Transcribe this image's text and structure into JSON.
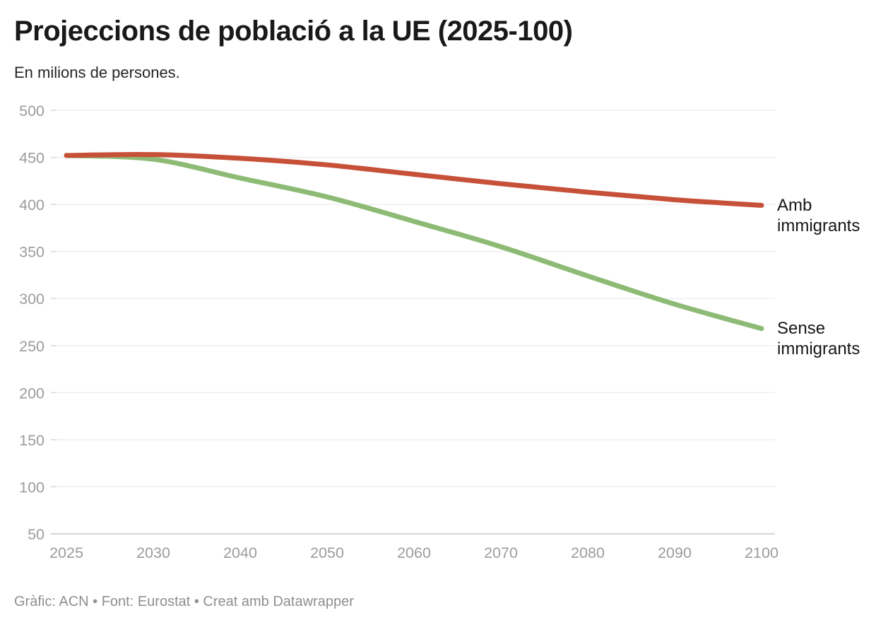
{
  "chart_data": {
    "type": "line",
    "title": "Projeccions de població a la UE (2025-100)",
    "subtitle": "En milions de persones.",
    "categories": [
      "2025",
      "2030",
      "2040",
      "2050",
      "2060",
      "2070",
      "2080",
      "2090",
      "2100"
    ],
    "series": [
      {
        "name": "Amb immigrants",
        "color": "#c75039",
        "values": [
          452,
          453,
          449,
          442,
          432,
          422,
          413,
          405,
          399
        ]
      },
      {
        "name": "Sense immigrants",
        "color": "#8dbb75",
        "values": [
          452,
          448,
          428,
          408,
          382,
          355,
          324,
          294,
          268
        ]
      }
    ],
    "xlabel": "",
    "ylabel": "En milions de persones",
    "ylim": [
      50,
      500
    ],
    "yticks": [
      50,
      100,
      150,
      200,
      250,
      300,
      350,
      400,
      450,
      500
    ],
    "grid": true,
    "legend_position": "labels-at-line-ends"
  },
  "footer": {
    "text": "Gràfic: ACN • Font: Eurostat • Creat amb Datawrapper"
  },
  "colors": {
    "title_text": "#191919",
    "subtitle_text": "#262626",
    "axis_text": "#9c9c9c",
    "gridline": "#ebebeb",
    "axis_baseline": "#c8c8c8",
    "tick_stub": "#d9d9d9",
    "series_label_text": "#161616",
    "footer_text": "#8f8f8f",
    "background": "#ffffff"
  }
}
